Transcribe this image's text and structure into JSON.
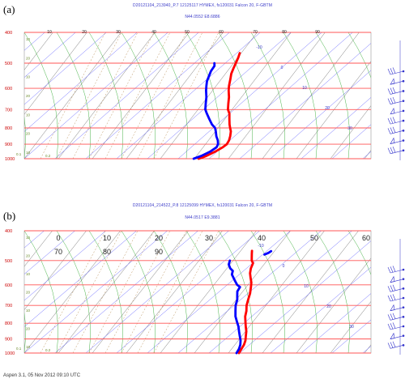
{
  "panels": [
    {
      "label": "(a)",
      "header_line1": "D20121104_213940_P.7 12125117 HYMEX, fs120031 Falcon 20, F-GBTM",
      "header_line2": "N44.0552 E8.6886",
      "pressure_ticks": [
        "400",
        "500",
        "600",
        "700",
        "800",
        "900",
        "1000"
      ],
      "temp_ticks": [
        "10",
        "20",
        "30",
        "40",
        "50",
        "60",
        "70",
        "80",
        "90"
      ],
      "temp_ticks_row2": [],
      "mixing_ratio_ticks": [
        "10",
        "20",
        "10",
        "20",
        "10",
        "20",
        "10"
      ],
      "misc_labels": {
        "p_note": "0.1",
        "mr_small": "0.2"
      },
      "isotherm_labels": [
        "-10",
        "0",
        "10",
        "20",
        "30"
      ],
      "chart_data": {
        "type": "line",
        "title": "",
        "xlabel": "",
        "ylabel": "",
        "y_scale": "log-pressure",
        "ylim": [
          1000,
          400
        ],
        "series": [
          {
            "color": "#ff0000",
            "points": [
              [
                -17,
                1000
              ],
              [
                -15,
                980
              ],
              [
                -13,
                950
              ],
              [
                -11.5,
                920
              ],
              [
                -11,
                900
              ],
              [
                -11.5,
                875
              ],
              [
                -12.5,
                850
              ],
              [
                -14,
                820
              ],
              [
                -15.5,
                800
              ],
              [
                -17,
                780
              ],
              [
                -19,
                750
              ],
              [
                -21,
                720
              ],
              [
                -23,
                700
              ],
              [
                -25,
                670
              ],
              [
                -27,
                640
              ],
              [
                -29.5,
                610
              ],
              [
                -31,
                590
              ],
              [
                -33,
                560
              ],
              [
                -34.5,
                540
              ],
              [
                -35.5,
                520
              ],
              [
                -36.5,
                500
              ],
              [
                -37.5,
                480
              ],
              [
                -38.5,
                465
              ]
            ]
          },
          {
            "color": "#0000ff",
            "points": [
              [
                -19,
                1000
              ],
              [
                -17,
                980
              ],
              [
                -15,
                950
              ],
              [
                -14,
                920
              ],
              [
                -14.5,
                900
              ],
              [
                -16,
                875
              ],
              [
                -18,
                850
              ],
              [
                -20,
                820
              ],
              [
                -21.5,
                800
              ],
              [
                -24,
                780
              ],
              [
                -27,
                750
              ],
              [
                -30,
                720
              ],
              [
                -32,
                700
              ],
              [
                -34,
                670
              ],
              [
                -36,
                640
              ],
              [
                -38.5,
                610
              ],
              [
                -40,
                590
              ],
              [
                -41.5,
                570
              ],
              [
                -42.5,
                550
              ],
              [
                -43.5,
                530
              ],
              [
                -44,
                510
              ],
              [
                -45,
                500
              ]
            ]
          }
        ]
      }
    },
    {
      "label": "(b)",
      "header_line1": "D20121104_214522_P.8 12125099 HYMEX, fs120031 Falcon 20, F-GBTM",
      "header_line2": "N44.0517 E9.3881",
      "pressure_ticks": [
        "400",
        "500",
        "600",
        "700",
        "800",
        "900",
        "1000"
      ],
      "temp_ticks": [
        "0",
        "10",
        "20",
        "30",
        "40",
        "50",
        "60"
      ],
      "temp_ticks_row2": [
        "70",
        "80",
        "90"
      ],
      "mixing_ratio_ticks": [
        "10",
        "20",
        "10",
        "20",
        "10",
        "20",
        "10"
      ],
      "misc_labels": {
        "p_note": "0.1",
        "mr_small": "0.2"
      },
      "isotherm_labels": [
        "-10",
        "0",
        "10",
        "20",
        "30"
      ],
      "chart_data": {
        "type": "line",
        "title": "",
        "xlabel": "",
        "ylabel": "",
        "y_scale": "log-pressure",
        "ylim": [
          1000,
          400
        ],
        "series": [
          {
            "color": "#ff0000",
            "points": [
              [
                -15,
                1000
              ],
              [
                -15.5,
                970
              ],
              [
                -16,
                940
              ],
              [
                -17,
                910
              ],
              [
                -18.5,
                880
              ],
              [
                -20,
                850
              ],
              [
                -22,
                820
              ],
              [
                -24,
                790
              ],
              [
                -26,
                760
              ],
              [
                -27.5,
                730
              ],
              [
                -29.5,
                700
              ],
              [
                -31,
                670
              ],
              [
                -32.5,
                640
              ],
              [
                -34.5,
                610
              ],
              [
                -36,
                590
              ],
              [
                -38,
                570
              ],
              [
                -40,
                550
              ],
              [
                -41.5,
                530
              ],
              [
                -42.5,
                510
              ],
              [
                -44,
                500
              ],
              [
                -45,
                490
              ],
              [
                -46.5,
                475
              ],
              [
                -47.5,
                465
              ]
            ]
          },
          {
            "color": "#0000ff",
            "points": [
              [
                -16,
                1000
              ],
              [
                -16.5,
                970
              ],
              [
                -17.5,
                940
              ],
              [
                -19,
                910
              ],
              [
                -21,
                880
              ],
              [
                -23,
                850
              ],
              [
                -25,
                820
              ],
              [
                -27.5,
                790
              ],
              [
                -30,
                760
              ],
              [
                -32,
                730
              ],
              [
                -34,
                700
              ],
              [
                -35.5,
                670
              ],
              [
                -37,
                650
              ],
              [
                -38.5,
                630
              ],
              [
                -39,
                610
              ],
              [
                -41,
                600
              ],
              [
                -43,
                585
              ],
              [
                -45,
                570
              ],
              [
                -47,
                555
              ],
              [
                -48,
                540
              ],
              [
                -50,
                530
              ],
              [
                -52,
                515
              ],
              [
                -53,
                500
              ]
            ]
          },
          {
            "color": "#0000ff",
            "points": [
              [
                -41,
                478
              ],
              [
                -40,
                472
              ],
              [
                -39.5,
                466
              ]
            ]
          }
        ]
      }
    }
  ],
  "footer": "Aspen 3.1, 05 Nov 2012 09:10 UTC",
  "colors": {
    "isobar": "#ff5555",
    "isotherm": "#5a5aff",
    "dry_adiabat": "#777777",
    "moist_adiabat": "#33aa33",
    "mixing_ratio": "#aa7733",
    "wind_barb": "#3333cc"
  }
}
